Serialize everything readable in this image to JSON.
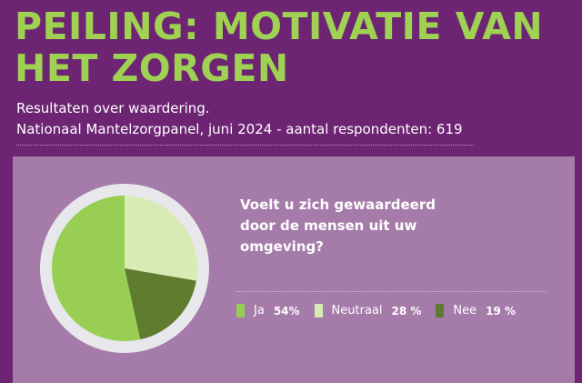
{
  "header": {
    "title_line1": "PEILING: MOTIVATIE VAN",
    "title_line2": "HET ZORGEN",
    "subtitle1": "Resultaten over waardering.",
    "subtitle2": "Nationaal Mantelzorgpanel, juni 2024 - aantal respondenten: 619"
  },
  "colors": {
    "background": "#6d2573",
    "card": "#a57baa",
    "title": "#9fd152",
    "ring": "#e8e8ec"
  },
  "chart_data": {
    "type": "pie",
    "title": "Voelt u zich gewaardeerd door de mensen uit uw omgeving?",
    "legend_position": "bottom-right",
    "slices": [
      {
        "label": "Ja",
        "value": 54,
        "display": "54%",
        "color": "#98ce54"
      },
      {
        "label": "Neutraal",
        "value": 28,
        "display": "28 %",
        "color": "#d9ebb4"
      },
      {
        "label": "Nee",
        "value": 19,
        "display": "19 %",
        "color": "#5f7c2e"
      }
    ]
  }
}
